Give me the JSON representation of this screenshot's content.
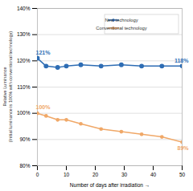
{
  "chart_data": {
    "type": "line",
    "x_label": "Number of days after irradiation",
    "y_label": "Relative Luminance (Initial luminance is 100% with conventional technology)",
    "x": [
      0,
      3,
      7,
      10,
      15,
      22,
      29,
      36,
      43,
      50
    ],
    "series": [
      {
        "name": "New technology",
        "color": "#2e6db4",
        "marker": "circle",
        "values": [
          121,
          118,
          117.5,
          118,
          118.5,
          118,
          118.5,
          118,
          118,
          118
        ]
      },
      {
        "name": "Conventional technology",
        "color": "#f0a868",
        "marker": "circle",
        "values": [
          100,
          99,
          97.5,
          97.5,
          96,
          94,
          93,
          92,
          91,
          89
        ]
      }
    ],
    "annotations": [
      {
        "text": "121%",
        "x": 0,
        "y": 121,
        "series": "New technology"
      },
      {
        "text": "118%",
        "x": 50,
        "y": 118,
        "series": "New technology"
      },
      {
        "text": "100%",
        "x": 0,
        "y": 100,
        "series": "Conventional technology"
      },
      {
        "text": "89%",
        "x": 50,
        "y": 89,
        "series": "Conventional technology"
      }
    ],
    "xlim": [
      0,
      50
    ],
    "xticks": [
      0,
      10,
      20,
      30,
      40,
      50
    ],
    "ylim": [
      80,
      140
    ],
    "yticks": [
      {
        "value": 80,
        "label": "80%"
      },
      {
        "value": 90,
        "label": "90%"
      },
      {
        "value": 100,
        "label": "100%"
      },
      {
        "value": 110,
        "label": "110%"
      },
      {
        "value": 120,
        "label": "120%"
      },
      {
        "value": 130,
        "label": "130%"
      },
      {
        "value": 140,
        "label": "140%"
      }
    ],
    "grid": true,
    "legend": "upper right"
  }
}
